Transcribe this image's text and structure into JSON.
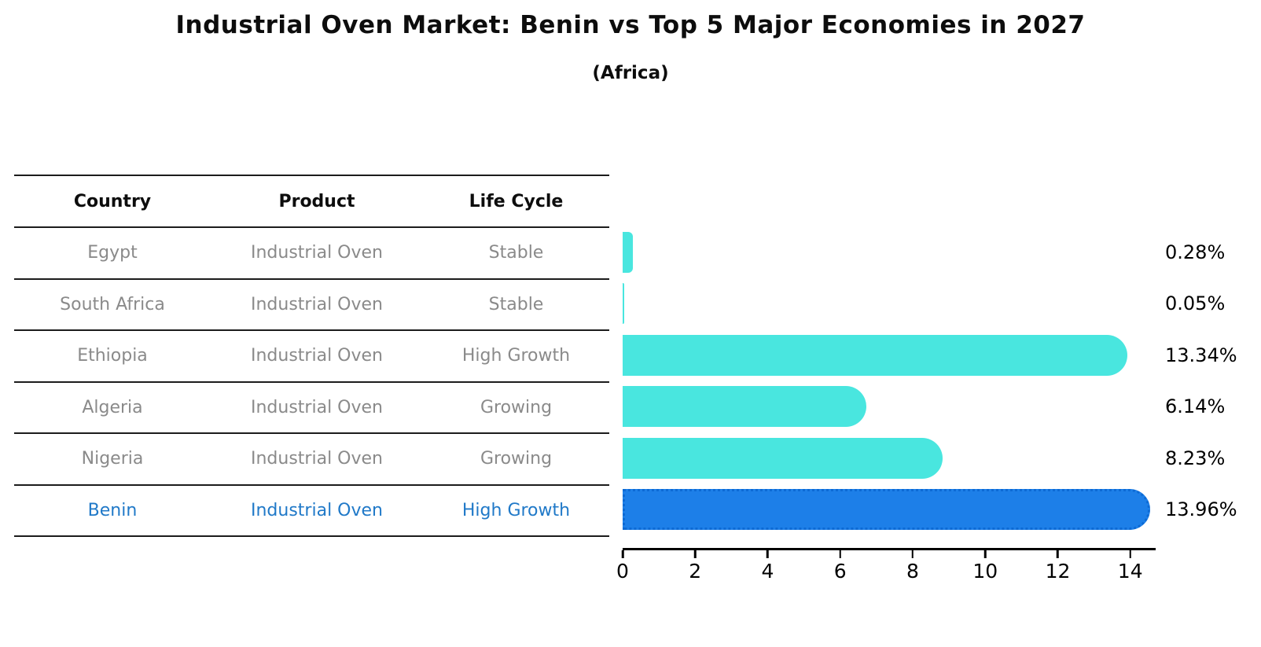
{
  "header": {
    "title": "Industrial Oven Market: Benin vs Top 5 Major Economies in 2027",
    "subtitle": "(Africa)"
  },
  "table": {
    "columns": [
      "Country",
      "Product",
      "Life Cycle"
    ],
    "rows": [
      {
        "country": "Egypt",
        "product": "Industrial Oven",
        "life_cycle": "Stable",
        "highlight": false
      },
      {
        "country": "South Africa",
        "product": "Industrial Oven",
        "life_cycle": "Stable",
        "highlight": false
      },
      {
        "country": "Ethiopia",
        "product": "Industrial Oven",
        "life_cycle": "High Growth",
        "highlight": false
      },
      {
        "country": "Algeria",
        "product": "Industrial Oven",
        "life_cycle": "Growing",
        "highlight": false
      },
      {
        "country": "Nigeria",
        "product": "Industrial Oven",
        "life_cycle": "Growing",
        "highlight": false
      },
      {
        "country": "Benin",
        "product": "Industrial Oven",
        "life_cycle": "High Growth",
        "highlight": true
      }
    ]
  },
  "chart_data": {
    "type": "bar",
    "orientation": "horizontal",
    "title": "Industrial Oven Market: Benin vs Top 5 Major Economies in 2027",
    "subtitle": "(Africa)",
    "categories": [
      "Egypt",
      "South Africa",
      "Ethiopia",
      "Algeria",
      "Nigeria",
      "Benin"
    ],
    "values": [
      0.28,
      0.05,
      13.34,
      6.14,
      8.23,
      13.96
    ],
    "value_labels": [
      "0.28%",
      "0.05%",
      "13.34%",
      "6.14%",
      "8.23%",
      "13.96%"
    ],
    "xlabel": "",
    "ylabel": "",
    "xticks": [
      0,
      2,
      4,
      6,
      8,
      10,
      12,
      14
    ],
    "xlim": [
      0,
      14.7
    ],
    "grid": false,
    "legend": false,
    "bar_color": "#49e6df",
    "highlight_color": "#1d7fe8",
    "highlight_border_color": "#0d6ad4",
    "highlight_index": 5
  },
  "colors": {
    "header_text": "#0d0d0d",
    "cell_text": "#8a8a8a",
    "highlight_text": "#2079c8",
    "table_line": "#1c1c1c",
    "axis": "#000000"
  }
}
